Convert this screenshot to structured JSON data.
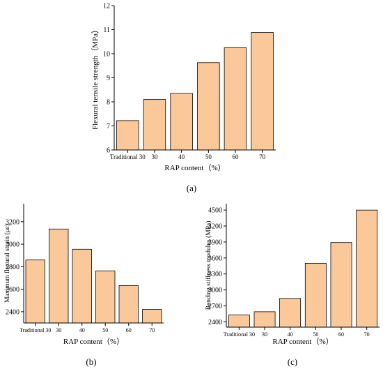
{
  "figure": {
    "panel_labels": [
      "(a)",
      "(b)",
      "(c)"
    ],
    "bar_fill": "#fbc89a",
    "bar_stroke": "#000000"
  },
  "chart_data": [
    {
      "id": "a",
      "type": "bar",
      "categories": [
        "Traditional 30",
        "30",
        "40",
        "50",
        "60",
        "70"
      ],
      "values": [
        7.22,
        8.1,
        8.35,
        9.63,
        10.25,
        10.88
      ],
      "xlabel": "RAP content（%）",
      "ylabel": "Flexural tensile strength（MPa）",
      "ylim": [
        6,
        12
      ],
      "yticks": [
        6,
        7,
        8,
        9,
        10,
        11,
        12
      ],
      "grid": false,
      "legend": "none"
    },
    {
      "id": "b",
      "type": "bar",
      "categories": [
        "Traditional 30",
        "30",
        "40",
        "50",
        "60",
        "70"
      ],
      "values": [
        2860,
        3135,
        2955,
        2763,
        2632,
        2421
      ],
      "xlabel": "RAP content（%）",
      "ylabel": "Maximum flexural strain (με)",
      "ylim": [
        2300,
        3360
      ],
      "yticks": [
        2400,
        2600,
        2800,
        3000,
        3200
      ],
      "grid": false,
      "legend": "none"
    },
    {
      "id": "c",
      "type": "bar",
      "categories": [
        "Traditional 30",
        "30",
        "40",
        "50",
        "60",
        "70"
      ],
      "values": [
        2530,
        2590,
        2840,
        3500,
        3890,
        4500
      ],
      "xlabel": "RAP content（%）",
      "ylabel": "Bending stiffness modulus (MPa)",
      "ylim": [
        2300,
        4620
      ],
      "yticks": [
        2400,
        2700,
        3000,
        3300,
        3600,
        3900,
        4200,
        4500
      ],
      "grid": false,
      "legend": "none"
    }
  ]
}
